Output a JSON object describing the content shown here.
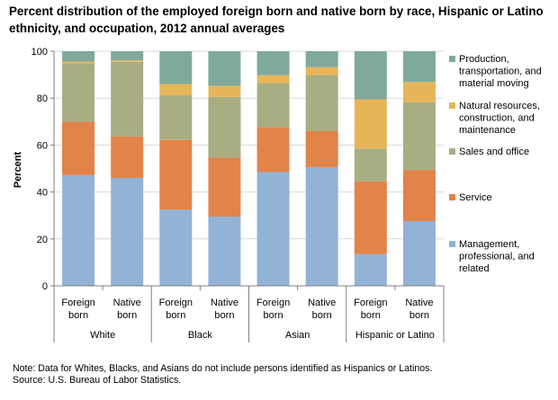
{
  "chart_data": {
    "type": "bar",
    "stacked": true,
    "title": "Percent distribution of the employed foreign born and native born by race, Hispanic or Latino ethnicity, and occupation, 2012 annual averages",
    "ylabel": "Percent",
    "ylim": [
      0,
      100
    ],
    "yticks": [
      "0",
      "20",
      "40",
      "60",
      "80",
      "100"
    ],
    "categories": [
      [
        "Foreign",
        "born"
      ],
      [
        "Native",
        "born"
      ],
      [
        "Foreign",
        "born"
      ],
      [
        "Native",
        "born"
      ],
      [
        "Foreign",
        "born"
      ],
      [
        "Native",
        "born"
      ],
      [
        "Foreign",
        "born"
      ],
      [
        "Native",
        "born"
      ]
    ],
    "groups": [
      "White",
      "Black",
      "Asian",
      "Hispanic or Latino"
    ],
    "grid": true,
    "legend_position": "right",
    "series": [
      {
        "name": "Management, professional, and related",
        "legend_lines": [
          "Management,",
          "professional, and",
          "related"
        ],
        "color": "#93b3d6",
        "values": [
          47.2,
          46.0,
          32.5,
          29.5,
          48.5,
          50.6,
          13.5,
          27.6
        ]
      },
      {
        "name": "Service",
        "legend_lines": [
          "Service"
        ],
        "color": "#e2834a",
        "values": [
          22.7,
          17.7,
          29.7,
          25.1,
          19.2,
          15.3,
          31.0,
          21.8
        ]
      },
      {
        "name": "Sales and office",
        "legend_lines": [
          "Sales and office"
        ],
        "color": "#a9ad82",
        "values": [
          25.0,
          31.8,
          19.0,
          25.9,
          18.7,
          23.9,
          14.0,
          28.9
        ]
      },
      {
        "name": "Natural resources, construction, and maintenance",
        "legend_lines": [
          "Natural resources,",
          "construction, and",
          "maintenance"
        ],
        "color": "#e7b65a",
        "values": [
          0.7,
          0.6,
          4.8,
          4.8,
          3.4,
          3.4,
          21.0,
          8.6
        ]
      },
      {
        "name": "Production, transportation, and material moving",
        "legend_lines": [
          "Production,",
          "transportation, and",
          "material moving"
        ],
        "color": "#7faa9b",
        "values": [
          4.4,
          3.9,
          14.0,
          14.7,
          10.2,
          6.8,
          20.5,
          13.1
        ]
      }
    ]
  },
  "note": "Note: Data for Whites, Blacks, and Asians do not include persons  identified as Hispanics or Latinos.",
  "source": "Source:  U.S. Bureau of Labor Statistics."
}
